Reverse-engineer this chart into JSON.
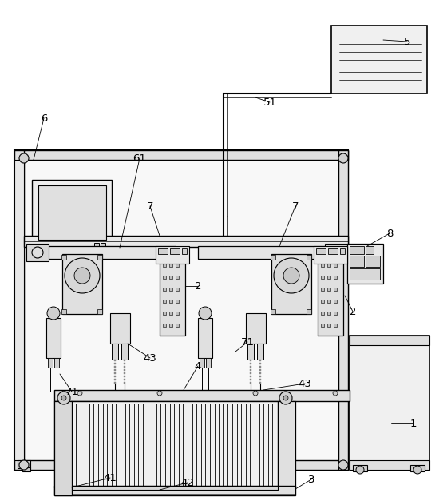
{
  "background_color": "#ffffff",
  "line_color": "#000000",
  "figsize": [
    5.55,
    6.27
  ],
  "dpi": 100,
  "labels": [
    [
      "1",
      518,
      530
    ],
    [
      "2",
      248,
      358
    ],
    [
      "2",
      442,
      390
    ],
    [
      "3",
      390,
      600
    ],
    [
      "4",
      248,
      458
    ],
    [
      "5",
      510,
      52
    ],
    [
      "6",
      55,
      148
    ],
    [
      "7",
      188,
      258
    ],
    [
      "7",
      370,
      258
    ],
    [
      "8",
      488,
      292
    ],
    [
      "41",
      138,
      598
    ],
    [
      "42",
      235,
      604
    ],
    [
      "43",
      188,
      448
    ],
    [
      "43",
      382,
      480
    ],
    [
      "51",
      338,
      128
    ],
    [
      "61",
      175,
      198
    ],
    [
      "71",
      90,
      490
    ],
    [
      "71",
      310,
      428
    ]
  ]
}
